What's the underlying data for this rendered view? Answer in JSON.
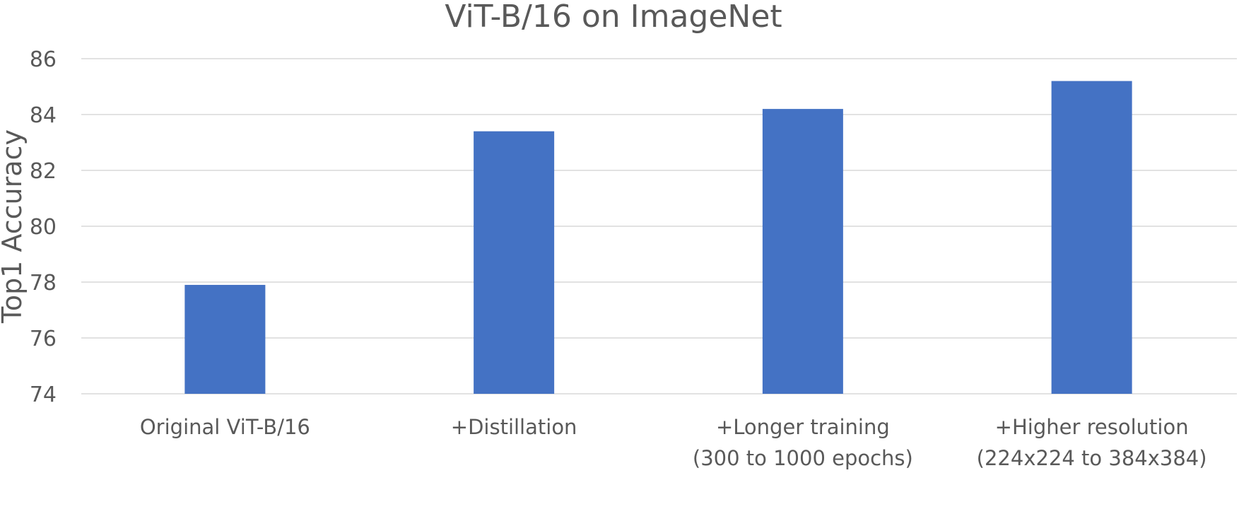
{
  "chart_data": {
    "type": "bar",
    "title": "ViT-B/16 on ImageNet",
    "xlabel": "",
    "ylabel": "Top1 Accuracy",
    "ylim": [
      74,
      86
    ],
    "yticks": [
      74,
      76,
      78,
      80,
      82,
      84,
      86
    ],
    "categories": [
      [
        "Original ViT-B/16"
      ],
      [
        "+Distillation"
      ],
      [
        "+Longer training",
        "(300 to 1000 epochs)"
      ],
      [
        "+Higher resolution",
        "(224x224 to 384x384)"
      ]
    ],
    "values": [
      77.9,
      83.4,
      84.2,
      85.2
    ],
    "grid": true,
    "bar_color": "#4472c4"
  }
}
